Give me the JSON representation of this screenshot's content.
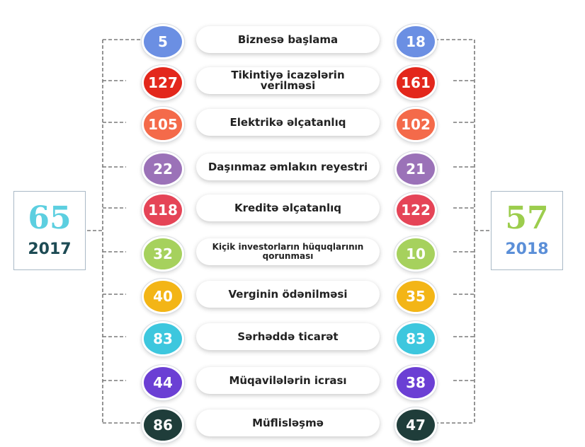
{
  "colors": {
    "connector": "#7a7a7a",
    "left_rank": "#5ccfe0",
    "left_year": "#1d4b54",
    "right_rank": "#9ccd4d",
    "right_year": "#5b8fd8"
  },
  "summary": {
    "left": {
      "rank": "65",
      "year": "2017"
    },
    "right": {
      "rank": "57",
      "year": "2018"
    }
  },
  "indicators": [
    {
      "label": "Biznesə başlama",
      "value_2017": "5",
      "value_2018": "18",
      "color": "#6b8fe3"
    },
    {
      "label": "Tikintiyə icazələrin verilməsi",
      "value_2017": "127",
      "value_2018": "161",
      "color": "#e3271c"
    },
    {
      "label": "Elektrikə əlçatanlıq",
      "value_2017": "105",
      "value_2018": "102",
      "color": "#f46a4a"
    },
    {
      "label": "Daşınmaz əmlakın reyestri",
      "value_2017": "22",
      "value_2018": "21",
      "color": "#9b72b8"
    },
    {
      "label": "Kreditə əlçatanlıq",
      "value_2017": "118",
      "value_2018": "122",
      "color": "#e54457"
    },
    {
      "label": "Kiçik investorların hüquqlarının qorunması",
      "value_2017": "32",
      "value_2018": "10",
      "color": "#a6d15d"
    },
    {
      "label": "Verginin ödənilməsi",
      "value_2017": "40",
      "value_2018": "35",
      "color": "#f3b516"
    },
    {
      "label": "Sərhəddə ticarət",
      "value_2017": "83",
      "value_2018": "83",
      "color": "#3dc7de"
    },
    {
      "label": "Müqavilələrin icrası",
      "value_2017": "44",
      "value_2018": "38",
      "color": "#6b3fd4"
    },
    {
      "label": "Müflisləşmə",
      "value_2017": "86",
      "value_2018": "47",
      "color": "#1f3d3a"
    }
  ]
}
